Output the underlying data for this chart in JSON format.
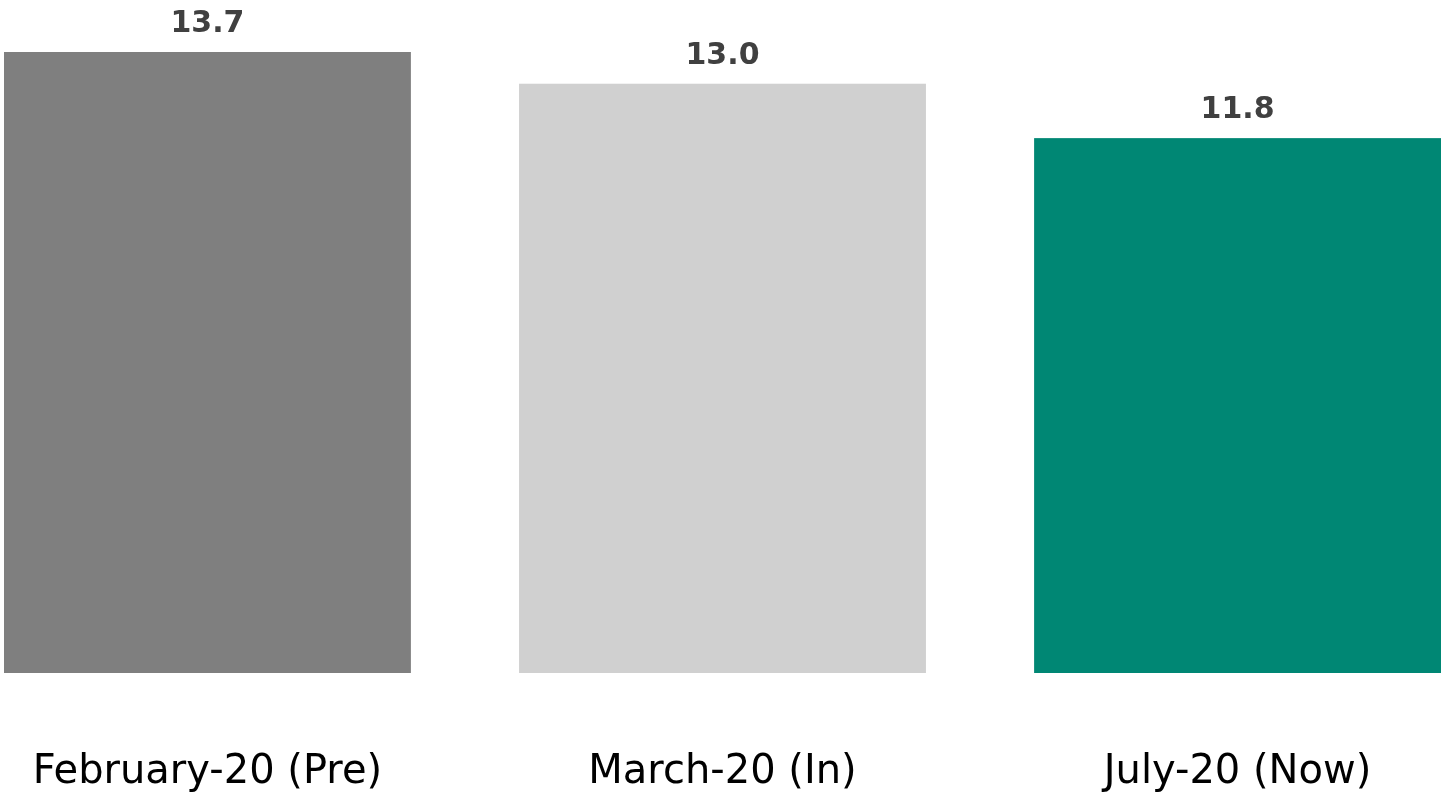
{
  "chart_data": {
    "type": "bar",
    "categories": [
      "February-20 (Pre)",
      "March-20 (In)",
      "July-20 (Now)"
    ],
    "values": [
      13.7,
      13.0,
      11.8
    ],
    "value_labels": [
      "13.7",
      "13.0",
      "11.8"
    ],
    "colors": [
      "#7f7f7f",
      "#d0d0d0",
      "#008774"
    ],
    "tick_labels": "x"
  }
}
